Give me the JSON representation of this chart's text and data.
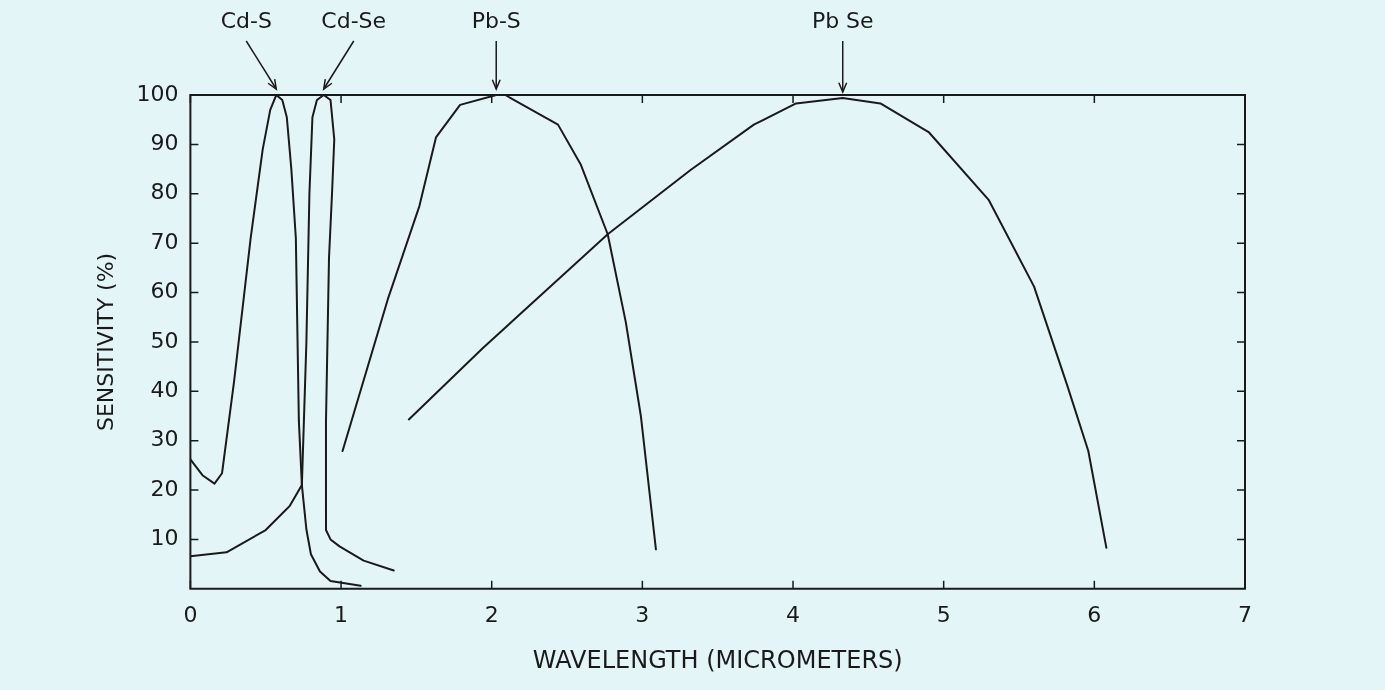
{
  "chart_data": {
    "type": "line",
    "xlabel": "WAVELENGTH (MICROMETERS)",
    "ylabel": "SENSITIVITY (%)",
    "xlim": [
      0,
      7
    ],
    "xticks": [
      0,
      1,
      2,
      3,
      4,
      5,
      6,
      7
    ],
    "ylim": [
      0,
      100
    ],
    "yticks": [
      10,
      20,
      30,
      40,
      50,
      60,
      70,
      80,
      90,
      100
    ],
    "grid": false,
    "legend": false,
    "marker": "none",
    "line_style": "solid",
    "series": [
      {
        "name": "Cd-S",
        "color": "#1a1a1a",
        "x": [
          0,
          0.08,
          0.16,
          0.21,
          0.29,
          0.4,
          0.48,
          0.53,
          0.57,
          0.61,
          0.64,
          0.67,
          0.7,
          0.72,
          0.74,
          0.77,
          0.8,
          0.86,
          0.93,
          1.13
        ],
        "values": [
          26.2,
          23,
          21.3,
          23.4,
          42,
          71,
          89,
          97,
          100,
          99,
          95.5,
          85,
          71,
          34,
          21,
          12,
          7,
          3.5,
          1.6,
          0.6
        ]
      },
      {
        "name": "Cd-Se",
        "color": "#1a1a1a",
        "x": [
          0,
          0.24,
          0.5,
          0.66,
          0.74,
          0.77,
          0.79,
          0.81,
          0.84,
          0.885,
          0.93,
          0.955,
          0.94,
          0.92,
          0.9,
          0.9,
          0.93,
          0.99,
          1.15,
          1.35
        ],
        "values": [
          6.6,
          7.4,
          11.9,
          16.8,
          21,
          50,
          80,
          95.5,
          99,
          100,
          99,
          91,
          80,
          67,
          34,
          11.9,
          10,
          8.6,
          5.7,
          3.7
        ]
      },
      {
        "name": "Pb-S",
        "color": "#1a1a1a",
        "x": [
          1.01,
          1.31,
          1.52,
          1.63,
          1.79,
          2.03,
          2.09,
          2.44,
          2.59,
          2.77,
          2.89,
          2.99,
          3.09
        ],
        "values": [
          27.9,
          58.6,
          77.5,
          91.4,
          98,
          100,
          100,
          94,
          86,
          71.8,
          54,
          35,
          8
        ]
      },
      {
        "name": "Pb Se",
        "color": "#1a1a1a",
        "x": [
          1.45,
          1.94,
          2.77,
          3.32,
          3.74,
          4.02,
          4.33,
          4.58,
          4.9,
          5.3,
          5.6,
          5.82,
          5.96,
          6.08
        ],
        "values": [
          34.3,
          48.7,
          71.8,
          84.8,
          94,
          98.3,
          99.4,
          98.3,
          92.5,
          78.7,
          61.2,
          41.2,
          27.9,
          8.3
        ]
      }
    ]
  }
}
